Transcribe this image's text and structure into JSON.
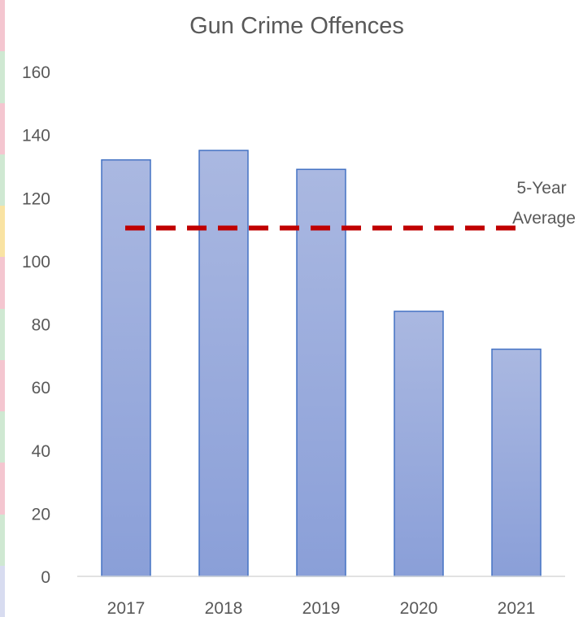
{
  "chart_data": {
    "type": "bar",
    "title": "Gun Crime Offences",
    "categories": [
      "2017",
      "2018",
      "2019",
      "2020",
      "2021"
    ],
    "values": [
      132,
      135,
      129,
      84,
      72
    ],
    "ylim": [
      0,
      160
    ],
    "yticks": [
      0,
      20,
      40,
      60,
      80,
      100,
      120,
      140,
      160
    ],
    "grid": false,
    "average": {
      "label_lines": [
        "5-Year",
        "Average"
      ],
      "value": 110.4,
      "color": "#c00000"
    },
    "bar_color_top": "#aab8e1",
    "bar_color_bottom": "#8a9fd8",
    "bar_border": "#4472c4",
    "axis_color": "#d9d9d9",
    "text_color": "#595959"
  }
}
